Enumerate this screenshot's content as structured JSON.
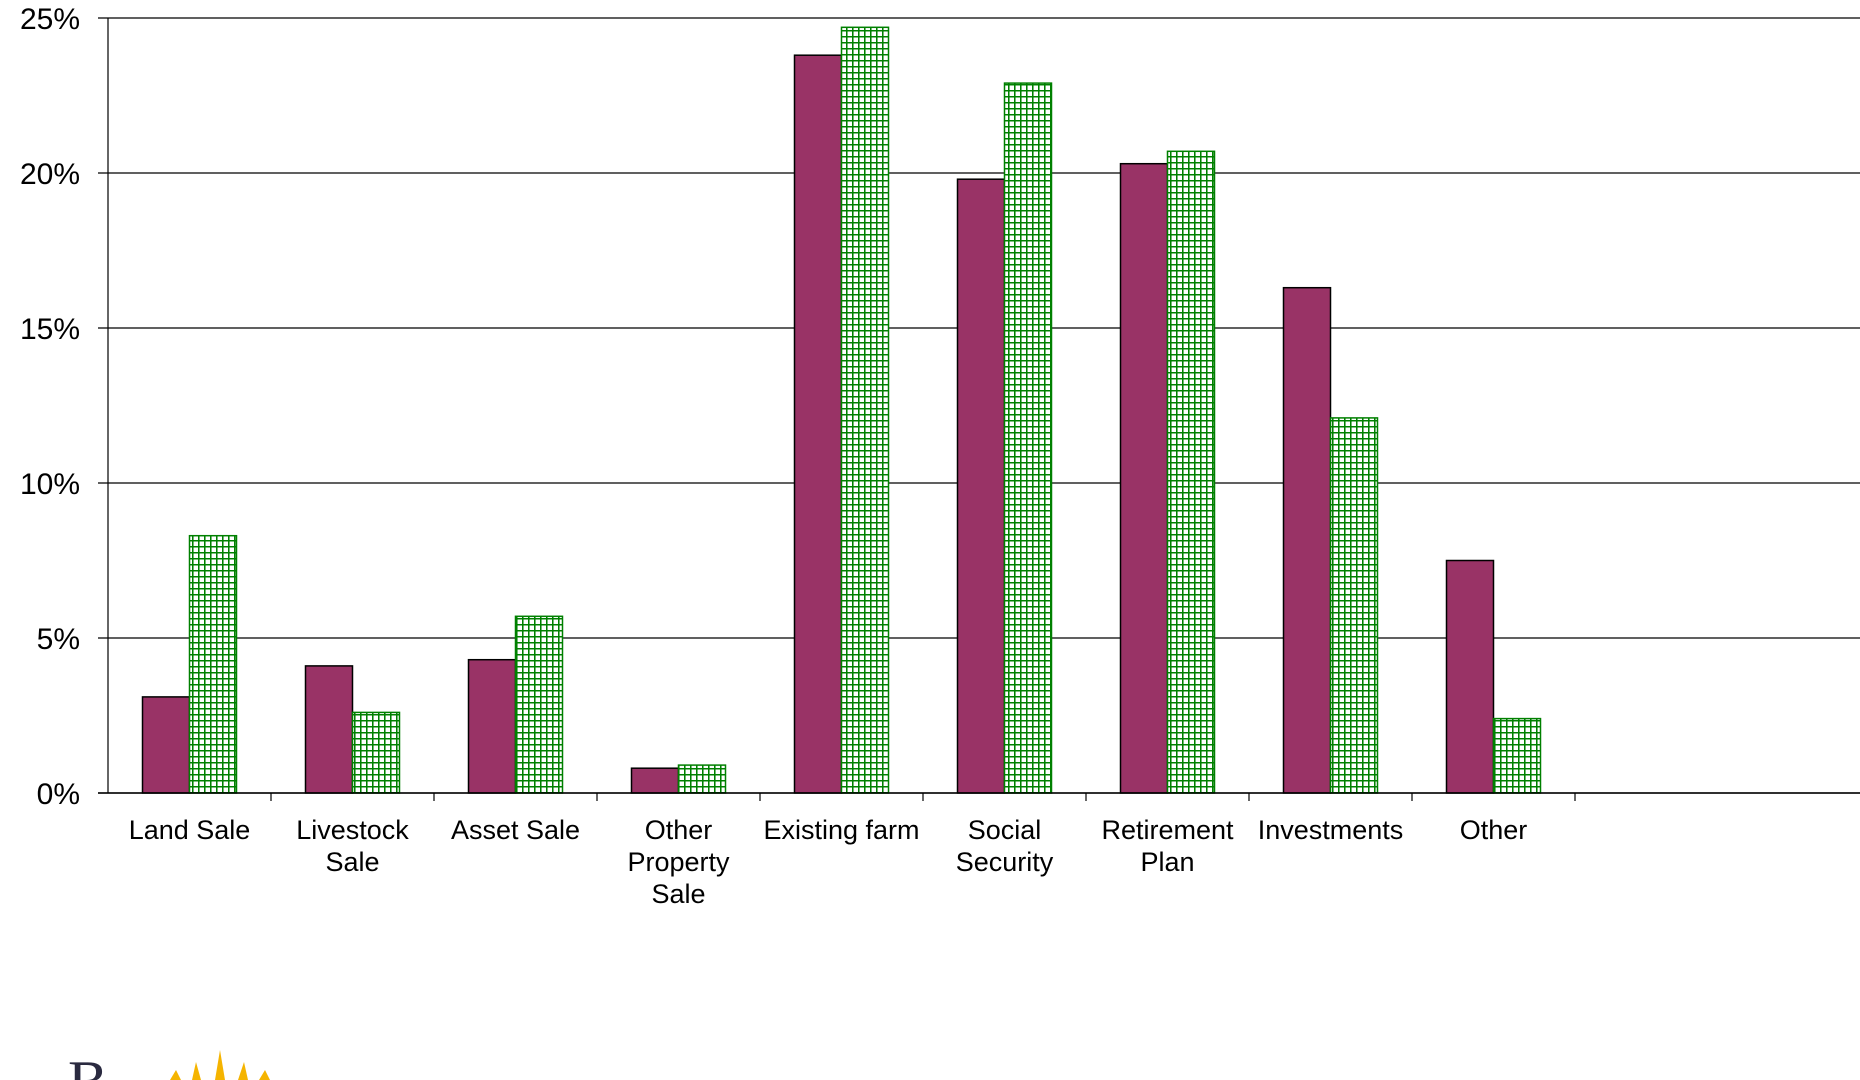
{
  "chart_data": {
    "type": "bar",
    "categories": [
      [
        "Land Sale"
      ],
      [
        "Livestock",
        "Sale"
      ],
      [
        "Asset Sale"
      ],
      [
        "Other",
        "Property",
        "Sale"
      ],
      [
        "Existing farm"
      ],
      [
        "Social",
        "Security"
      ],
      [
        "Retirement",
        "Plan"
      ],
      [
        "Investments"
      ],
      [
        "Other"
      ]
    ],
    "series": [
      {
        "values": [
          3.1,
          4.1,
          4.3,
          0.8,
          23.8,
          19.8,
          20.3,
          16.3,
          7.5
        ],
        "color": "#993366",
        "pattern": "solid"
      },
      {
        "values": [
          8.3,
          2.6,
          5.7,
          0.9,
          24.7,
          22.9,
          20.7,
          12.1,
          2.4
        ],
        "color": "#008000",
        "pattern": "grid"
      }
    ],
    "ylim": [
      0,
      25
    ],
    "yticks": [
      "0%",
      "5%",
      "10%",
      "15%",
      "20%",
      "25%"
    ],
    "grid": true,
    "legend": "none"
  },
  "logo": {
    "icon": "sun-logo-icon"
  }
}
